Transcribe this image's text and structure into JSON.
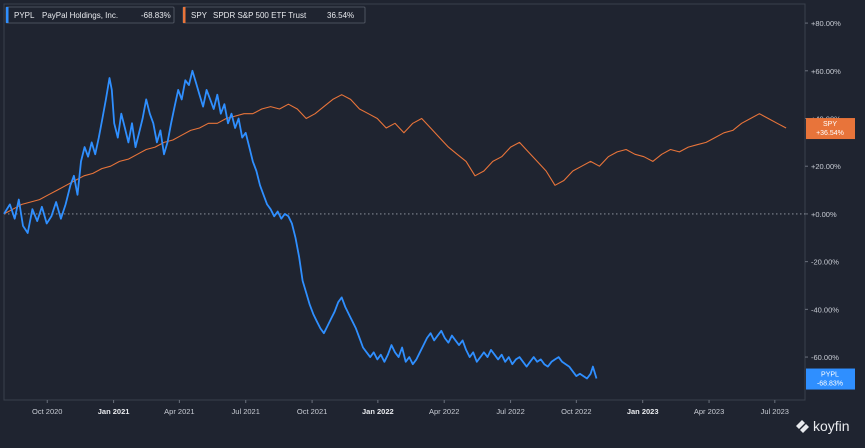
{
  "chart_data": {
    "type": "line",
    "title": "",
    "xlabel": "",
    "ylabel": "",
    "ylim": [
      -78,
      88
    ],
    "y_ticks": [
      80,
      60,
      40,
      20,
      0,
      -20,
      -40,
      -60
    ],
    "y_tick_labels": [
      "+80.00%",
      "+60.00%",
      "+40.00%",
      "+20.00%",
      "+0.00%",
      "-20.00%",
      "-40.00%",
      "-60.00%"
    ],
    "x_ticks": [
      {
        "label": "Oct 2020",
        "t": 0.073,
        "bold": false
      },
      {
        "label": "Jan 2021",
        "t": 0.185,
        "bold": true
      },
      {
        "label": "Apr 2021",
        "t": 0.296,
        "bold": false
      },
      {
        "label": "Jul 2021",
        "t": 0.408,
        "bold": false
      },
      {
        "label": "Oct 2021",
        "t": 0.52,
        "bold": false
      },
      {
        "label": "Jan 2022",
        "t": 0.631,
        "bold": true
      },
      {
        "label": "Apr 2022",
        "t": 0.743,
        "bold": false
      },
      {
        "label": "Jul 2022",
        "t": 0.855,
        "bold": false
      },
      {
        "label": "Oct 2022",
        "t": 0.966,
        "bold": false
      },
      {
        "label": "Jan 2023",
        "t": 1.078,
        "bold": true
      },
      {
        "label": "Apr 2023",
        "t": 1.19,
        "bold": false
      },
      {
        "label": "Jul 2023",
        "t": 1.301,
        "bold": false
      }
    ],
    "legend": [
      {
        "ticker": "PYPL",
        "name": "PayPal Holdings, Inc.",
        "value": "-68.83%",
        "color": "#2f8fff"
      },
      {
        "ticker": "SPY",
        "name": "SPDR S&P 500 ETF Trust",
        "value": "36.54%",
        "color": "#e8743a"
      }
    ],
    "series": [
      {
        "name": "PYPL",
        "color": "#2f8fff",
        "end_label": [
          "PYPL",
          "-68.83%"
        ],
        "points": [
          [
            0.0,
            0
          ],
          [
            0.01,
            4
          ],
          [
            0.018,
            -2
          ],
          [
            0.025,
            6
          ],
          [
            0.032,
            -5
          ],
          [
            0.04,
            -8
          ],
          [
            0.048,
            2
          ],
          [
            0.056,
            -3
          ],
          [
            0.064,
            3
          ],
          [
            0.072,
            -4
          ],
          [
            0.08,
            -1
          ],
          [
            0.088,
            5
          ],
          [
            0.096,
            -2
          ],
          [
            0.104,
            4
          ],
          [
            0.112,
            12
          ],
          [
            0.118,
            16
          ],
          [
            0.124,
            8
          ],
          [
            0.13,
            22
          ],
          [
            0.136,
            28
          ],
          [
            0.142,
            24
          ],
          [
            0.148,
            30
          ],
          [
            0.154,
            25
          ],
          [
            0.16,
            32
          ],
          [
            0.166,
            40
          ],
          [
            0.172,
            48
          ],
          [
            0.178,
            57
          ],
          [
            0.182,
            52
          ],
          [
            0.186,
            38
          ],
          [
            0.192,
            32
          ],
          [
            0.198,
            42
          ],
          [
            0.204,
            36
          ],
          [
            0.21,
            30
          ],
          [
            0.216,
            38
          ],
          [
            0.222,
            28
          ],
          [
            0.228,
            34
          ],
          [
            0.234,
            40
          ],
          [
            0.24,
            48
          ],
          [
            0.246,
            42
          ],
          [
            0.252,
            38
          ],
          [
            0.258,
            30
          ],
          [
            0.264,
            35
          ],
          [
            0.27,
            25
          ],
          [
            0.276,
            30
          ],
          [
            0.282,
            38
          ],
          [
            0.288,
            45
          ],
          [
            0.294,
            52
          ],
          [
            0.3,
            48
          ],
          [
            0.306,
            56
          ],
          [
            0.312,
            54
          ],
          [
            0.318,
            60
          ],
          [
            0.324,
            55
          ],
          [
            0.33,
            50
          ],
          [
            0.336,
            45
          ],
          [
            0.342,
            52
          ],
          [
            0.348,
            48
          ],
          [
            0.354,
            44
          ],
          [
            0.36,
            50
          ],
          [
            0.366,
            42
          ],
          [
            0.372,
            46
          ],
          [
            0.378,
            38
          ],
          [
            0.384,
            42
          ],
          [
            0.39,
            36
          ],
          [
            0.396,
            40
          ],
          [
            0.402,
            32
          ],
          [
            0.408,
            34
          ],
          [
            0.414,
            28
          ],
          [
            0.42,
            22
          ],
          [
            0.426,
            18
          ],
          [
            0.432,
            12
          ],
          [
            0.438,
            8
          ],
          [
            0.444,
            4
          ],
          [
            0.45,
            2
          ],
          [
            0.456,
            -1
          ],
          [
            0.462,
            1
          ],
          [
            0.468,
            -2
          ],
          [
            0.474,
            0
          ],
          [
            0.48,
            -1
          ],
          [
            0.486,
            -4
          ],
          [
            0.492,
            -10
          ],
          [
            0.498,
            -18
          ],
          [
            0.504,
            -28
          ],
          [
            0.51,
            -33
          ],
          [
            0.516,
            -38
          ],
          [
            0.522,
            -42
          ],
          [
            0.528,
            -45
          ],
          [
            0.534,
            -48
          ],
          [
            0.54,
            -50
          ],
          [
            0.546,
            -47
          ],
          [
            0.552,
            -44
          ],
          [
            0.558,
            -41
          ],
          [
            0.564,
            -37
          ],
          [
            0.57,
            -35
          ],
          [
            0.576,
            -39
          ],
          [
            0.582,
            -42
          ],
          [
            0.588,
            -45
          ],
          [
            0.594,
            -48
          ],
          [
            0.6,
            -52
          ],
          [
            0.606,
            -56
          ],
          [
            0.612,
            -58
          ],
          [
            0.618,
            -60
          ],
          [
            0.624,
            -58
          ],
          [
            0.63,
            -61
          ],
          [
            0.636,
            -59
          ],
          [
            0.642,
            -62
          ],
          [
            0.648,
            -59
          ],
          [
            0.654,
            -55
          ],
          [
            0.66,
            -58
          ],
          [
            0.666,
            -60
          ],
          [
            0.672,
            -56
          ],
          [
            0.678,
            -62
          ],
          [
            0.684,
            -60
          ],
          [
            0.69,
            -63
          ],
          [
            0.696,
            -61
          ],
          [
            0.702,
            -58
          ],
          [
            0.708,
            -55
          ],
          [
            0.714,
            -52
          ],
          [
            0.72,
            -50
          ],
          [
            0.726,
            -53
          ],
          [
            0.732,
            -51
          ],
          [
            0.738,
            -49
          ],
          [
            0.744,
            -52
          ],
          [
            0.75,
            -54
          ],
          [
            0.756,
            -51
          ],
          [
            0.762,
            -53
          ],
          [
            0.768,
            -55
          ],
          [
            0.774,
            -53
          ],
          [
            0.78,
            -57
          ],
          [
            0.786,
            -60
          ],
          [
            0.792,
            -58
          ],
          [
            0.798,
            -62
          ],
          [
            0.804,
            -60
          ],
          [
            0.81,
            -58
          ],
          [
            0.816,
            -60
          ],
          [
            0.822,
            -57
          ],
          [
            0.828,
            -59
          ],
          [
            0.834,
            -61
          ],
          [
            0.84,
            -59
          ],
          [
            0.846,
            -62
          ],
          [
            0.852,
            -60
          ],
          [
            0.858,
            -63
          ],
          [
            0.864,
            -61
          ],
          [
            0.87,
            -60
          ],
          [
            0.876,
            -62
          ],
          [
            0.882,
            -64
          ],
          [
            0.888,
            -62
          ],
          [
            0.894,
            -60
          ],
          [
            0.9,
            -62
          ],
          [
            0.906,
            -61
          ],
          [
            0.912,
            -63
          ],
          [
            0.918,
            -64
          ],
          [
            0.924,
            -62
          ],
          [
            0.93,
            -61
          ],
          [
            0.936,
            -60
          ],
          [
            0.942,
            -62
          ],
          [
            0.948,
            -63
          ],
          [
            0.954,
            -64
          ],
          [
            0.96,
            -66
          ],
          [
            0.966,
            -68
          ],
          [
            0.972,
            -67
          ],
          [
            0.978,
            -68
          ],
          [
            0.984,
            -69
          ],
          [
            0.99,
            -67
          ],
          [
            0.994,
            -64
          ],
          [
            1.0,
            -69
          ]
        ]
      },
      {
        "name": "SPY",
        "color": "#e8743a",
        "end_label": [
          "SPY",
          "+36.54%"
        ],
        "points": [
          [
            0.0,
            0
          ],
          [
            0.015,
            2
          ],
          [
            0.03,
            4
          ],
          [
            0.045,
            5
          ],
          [
            0.06,
            6
          ],
          [
            0.075,
            8
          ],
          [
            0.09,
            10
          ],
          [
            0.105,
            12
          ],
          [
            0.12,
            14
          ],
          [
            0.135,
            16
          ],
          [
            0.15,
            17
          ],
          [
            0.165,
            19
          ],
          [
            0.18,
            20
          ],
          [
            0.195,
            22
          ],
          [
            0.21,
            23
          ],
          [
            0.225,
            25
          ],
          [
            0.24,
            27
          ],
          [
            0.255,
            28
          ],
          [
            0.27,
            30
          ],
          [
            0.285,
            31
          ],
          [
            0.3,
            33
          ],
          [
            0.315,
            35
          ],
          [
            0.33,
            36
          ],
          [
            0.345,
            38
          ],
          [
            0.36,
            38
          ],
          [
            0.375,
            40
          ],
          [
            0.39,
            41
          ],
          [
            0.405,
            42
          ],
          [
            0.42,
            42
          ],
          [
            0.435,
            44
          ],
          [
            0.45,
            45
          ],
          [
            0.465,
            44
          ],
          [
            0.48,
            46
          ],
          [
            0.495,
            44
          ],
          [
            0.51,
            40
          ],
          [
            0.525,
            42
          ],
          [
            0.54,
            45
          ],
          [
            0.555,
            48
          ],
          [
            0.57,
            50
          ],
          [
            0.585,
            48
          ],
          [
            0.6,
            44
          ],
          [
            0.615,
            42
          ],
          [
            0.63,
            40
          ],
          [
            0.645,
            36
          ],
          [
            0.66,
            38
          ],
          [
            0.675,
            34
          ],
          [
            0.69,
            38
          ],
          [
            0.705,
            40
          ],
          [
            0.72,
            36
          ],
          [
            0.735,
            32
          ],
          [
            0.75,
            28
          ],
          [
            0.765,
            25
          ],
          [
            0.78,
            22
          ],
          [
            0.795,
            16
          ],
          [
            0.81,
            18
          ],
          [
            0.825,
            22
          ],
          [
            0.84,
            24
          ],
          [
            0.855,
            28
          ],
          [
            0.87,
            30
          ],
          [
            0.885,
            26
          ],
          [
            0.9,
            22
          ],
          [
            0.915,
            18
          ],
          [
            0.93,
            12
          ],
          [
            0.945,
            14
          ],
          [
            0.96,
            18
          ],
          [
            0.975,
            20
          ],
          [
            0.99,
            22
          ],
          [
            1.005,
            20
          ],
          [
            1.02,
            24
          ],
          [
            1.035,
            26
          ],
          [
            1.05,
            27
          ],
          [
            1.065,
            25
          ],
          [
            1.08,
            24
          ],
          [
            1.095,
            22
          ],
          [
            1.11,
            25
          ],
          [
            1.125,
            27
          ],
          [
            1.14,
            26
          ],
          [
            1.155,
            28
          ],
          [
            1.17,
            29
          ],
          [
            1.185,
            30
          ],
          [
            1.2,
            32
          ],
          [
            1.215,
            34
          ],
          [
            1.23,
            35
          ],
          [
            1.245,
            38
          ],
          [
            1.26,
            40
          ],
          [
            1.275,
            42
          ],
          [
            1.29,
            40
          ],
          [
            1.305,
            38
          ],
          [
            1.32,
            36
          ]
        ]
      }
    ]
  },
  "branding": {
    "name": "koyfin"
  }
}
